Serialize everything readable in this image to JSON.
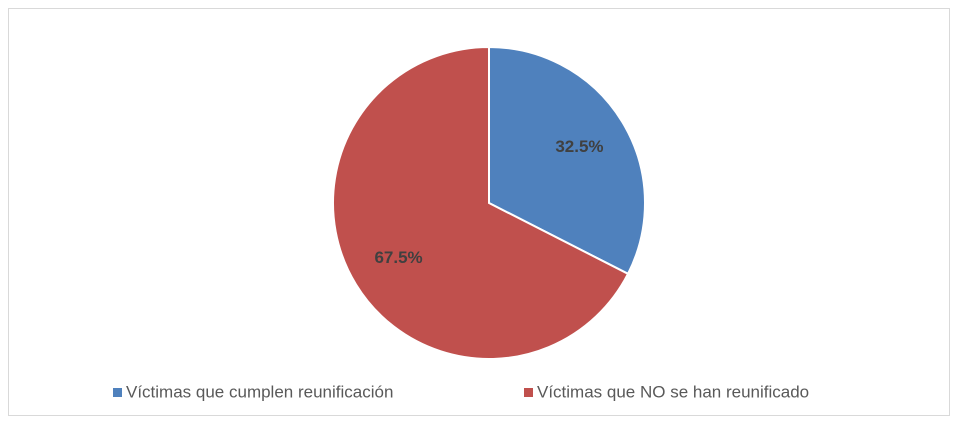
{
  "chart_data": {
    "type": "pie",
    "categories": [
      "Víctimas que cumplen reunificación",
      "Víctimas que NO se han reunificado"
    ],
    "values": [
      32.5,
      67.5
    ],
    "value_labels": [
      "32.5%",
      "67.5%"
    ],
    "colors": [
      "#4f81bd",
      "#c0504d"
    ],
    "legend": "bottom"
  }
}
